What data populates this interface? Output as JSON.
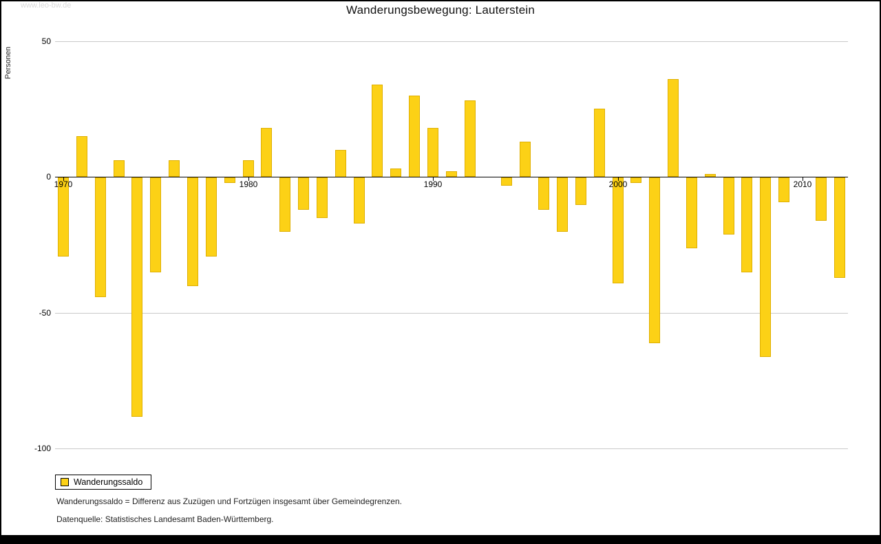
{
  "watermark": "www.leo-bw.de",
  "title": "Wanderungsbewegung: Lauterstein",
  "y_axis_label": "Personen",
  "legend": {
    "label": "Wanderungssaldo"
  },
  "footnotes": {
    "line1": "Wanderungssaldo = Differenz aus Zuzügen und Fortzügen insgesamt über Gemeindegrenzen.",
    "line2": "Datenquelle: Statistisches Landesamt Baden-Württemberg."
  },
  "chart_data": {
    "type": "bar",
    "title": "Wanderungsbewegung: Lauterstein",
    "xlabel": "",
    "ylabel": "Personen",
    "series_name": "Wanderungssaldo",
    "bar_color": "#FCD116",
    "bar_border_color": "#DFAF00",
    "ylim": [
      -100,
      50
    ],
    "y_ticks": [
      50,
      0,
      -50,
      -100
    ],
    "x_ticks": [
      1970,
      1980,
      1990,
      2000,
      2010
    ],
    "grid": "horizontal",
    "legend_position": "bottom-left",
    "years": [
      1970,
      1971,
      1972,
      1973,
      1974,
      1975,
      1976,
      1977,
      1978,
      1979,
      1980,
      1981,
      1982,
      1983,
      1984,
      1985,
      1986,
      1987,
      1988,
      1989,
      1990,
      1991,
      1992,
      1993,
      1994,
      1995,
      1996,
      1997,
      1998,
      1999,
      2000,
      2001,
      2002,
      2003,
      2004,
      2005,
      2006,
      2007,
      2008,
      2009,
      2010,
      2011,
      2012
    ],
    "values": [
      -29,
      15,
      -44,
      6,
      -88,
      -35,
      6,
      -40,
      -29,
      -2,
      6,
      18,
      -20,
      -12,
      -15,
      10,
      -17,
      34,
      3,
      30,
      18,
      2,
      28,
      0,
      -3,
      13,
      -12,
      -20,
      -10,
      25,
      -39,
      -2,
      -61,
      36,
      -26,
      1,
      -21,
      -35,
      -66,
      -9,
      0,
      -16,
      -37
    ]
  }
}
